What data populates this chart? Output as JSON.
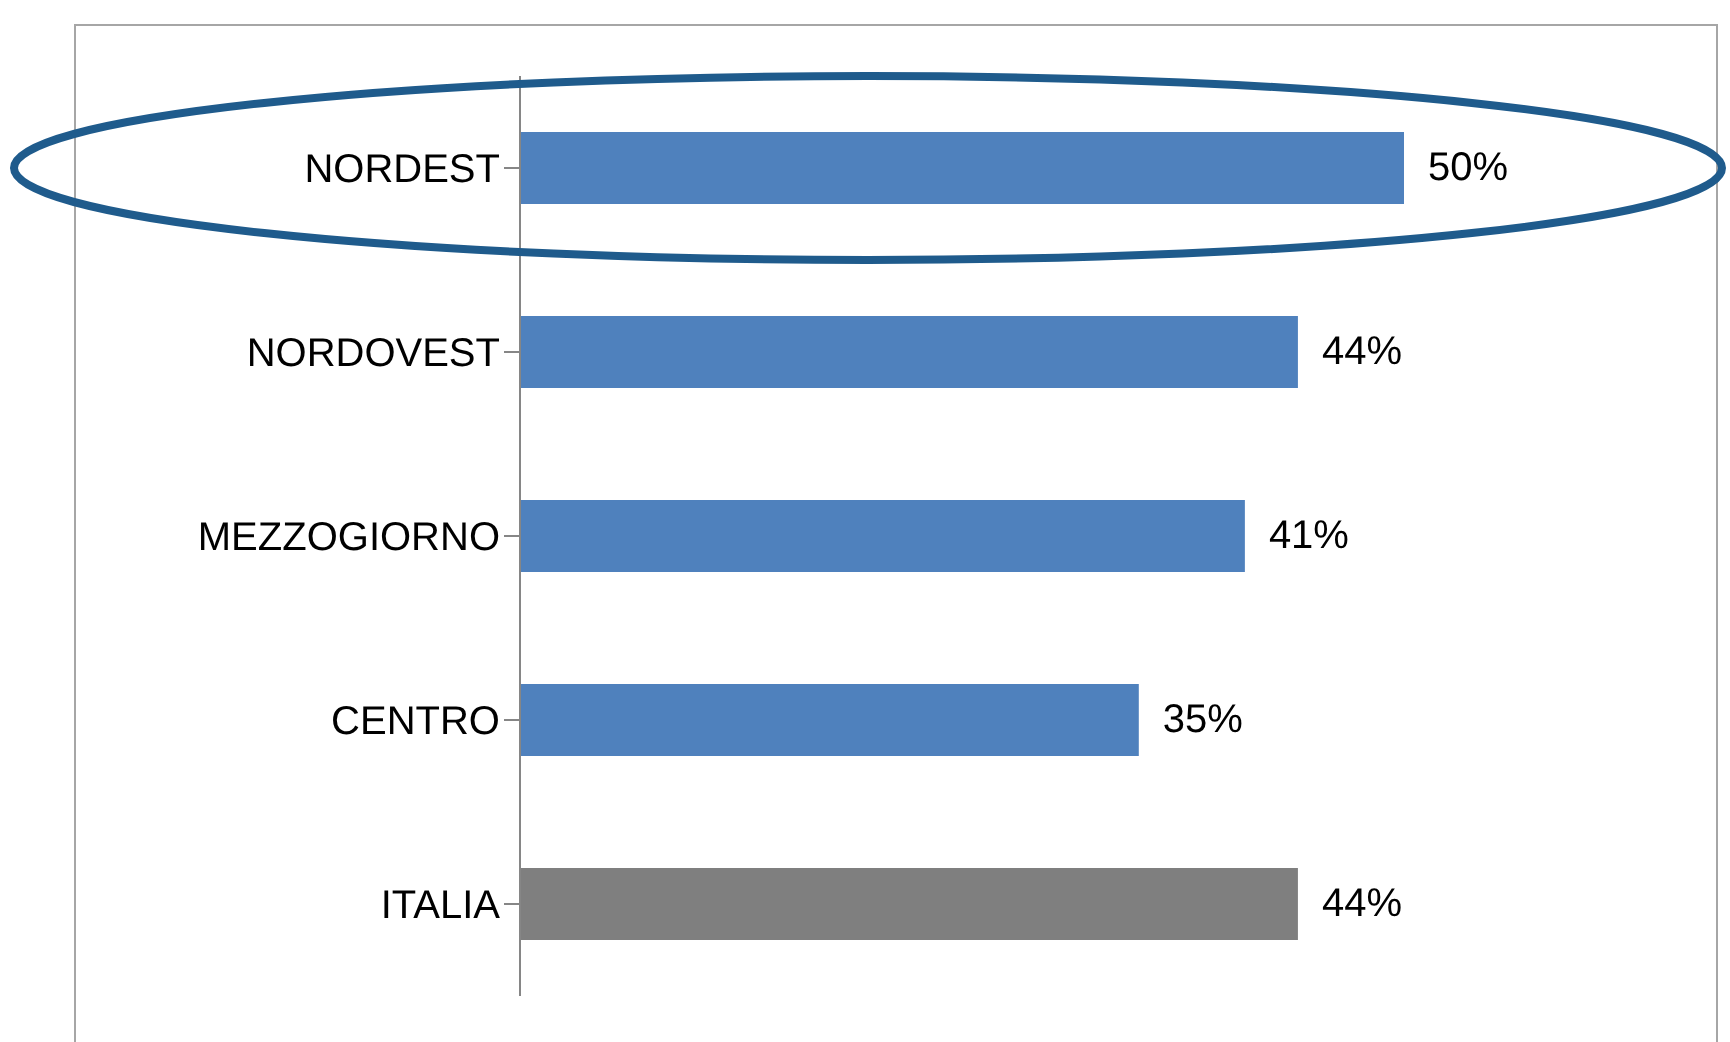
{
  "chart_data": {
    "type": "bar",
    "orientation": "horizontal",
    "categories": [
      "NORDEST",
      "NORDOVEST",
      "MEZZOGIORNO",
      "CENTRO",
      "ITALIA"
    ],
    "values": [
      50,
      44,
      41,
      35,
      44
    ],
    "colors": [
      "#4f81bd",
      "#4f81bd",
      "#4f81bd",
      "#4f81bd",
      "#7f7f7f"
    ],
    "value_labels": [
      "50%",
      "44%",
      "41%",
      "35%",
      "44%"
    ]
  }
}
